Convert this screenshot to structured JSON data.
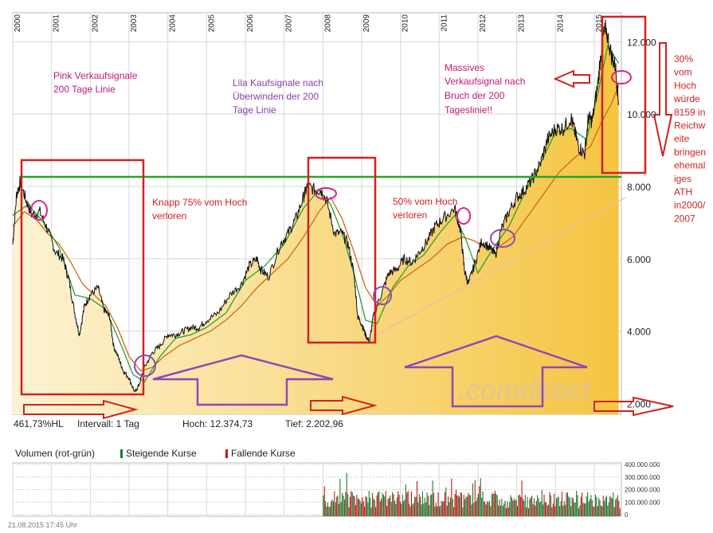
{
  "chart_data": {
    "type": "line",
    "title": "",
    "x_ticks": [
      "2000",
      "2001",
      "2002",
      "2003",
      "2004",
      "2005",
      "2006",
      "2007",
      "2008",
      "2009",
      "2010",
      "2011",
      "2012",
      "2013",
      "2014",
      "2015"
    ],
    "y_ticks": [
      "2.000",
      "4.000",
      "6.000",
      "8.000",
      "10.000",
      "12.000"
    ],
    "ylim": [
      1700,
      12800
    ],
    "xlim": [
      2000.0,
      2015.7
    ],
    "series": [
      {
        "key": "price",
        "x": [
          2000.0,
          2000.1,
          2000.2,
          2000.35,
          2000.5,
          2000.7,
          2000.9,
          2001.1,
          2001.3,
          2001.45,
          2001.6,
          2001.72,
          2001.85,
          2002.0,
          2002.2,
          2002.35,
          2002.5,
          2002.6,
          2002.75,
          2002.85,
          2003.0,
          2003.15,
          2003.25,
          2003.4,
          2003.6,
          2003.8,
          2004.0,
          2004.2,
          2004.4,
          2004.6,
          2004.8,
          2005.0,
          2005.3,
          2005.6,
          2005.9,
          2006.1,
          2006.3,
          2006.4,
          2006.6,
          2006.9,
          2007.1,
          2007.3,
          2007.5,
          2007.6,
          2007.8,
          2007.95,
          2008.1,
          2008.3,
          2008.5,
          2008.65,
          2008.8,
          2008.9,
          2009.0,
          2009.1,
          2009.2,
          2009.3,
          2009.5,
          2009.7,
          2009.9,
          2010.1,
          2010.3,
          2010.5,
          2010.7,
          2010.9,
          2011.1,
          2011.4,
          2011.55,
          2011.65,
          2011.75,
          2011.9,
          2012.1,
          2012.3,
          2012.45,
          2012.6,
          2012.8,
          2013.0,
          2013.2,
          2013.4,
          2013.6,
          2013.8,
          2014.0,
          2014.2,
          2014.4,
          2014.5,
          2014.6,
          2014.75,
          2014.85,
          2014.95,
          2015.1,
          2015.2,
          2015.3,
          2015.45,
          2015.55,
          2015.63
        ],
        "y": [
          6400,
          7800,
          8100,
          7600,
          7200,
          7300,
          6800,
          6200,
          6000,
          5400,
          4500,
          3900,
          4700,
          5000,
          5200,
          4600,
          4400,
          3600,
          3200,
          2900,
          2700,
          2300,
          2500,
          3000,
          3400,
          3600,
          3900,
          3900,
          4000,
          4100,
          4100,
          4300,
          4500,
          5000,
          5300,
          5800,
          6000,
          5700,
          5500,
          6400,
          6700,
          7100,
          7700,
          8000,
          7900,
          7900,
          7600,
          6700,
          6700,
          6400,
          5600,
          4400,
          4200,
          3900,
          3700,
          4400,
          5000,
          5600,
          5700,
          6000,
          5900,
          6200,
          6500,
          6900,
          7100,
          7400,
          6800,
          5700,
          5300,
          5800,
          6500,
          6300,
          6100,
          6800,
          7300,
          7700,
          7900,
          8200,
          8600,
          9300,
          9600,
          9600,
          9900,
          9500,
          9100,
          8900,
          9900,
          9800,
          10900,
          12000,
          12375,
          11600,
          11300,
          10300
        ]
      },
      {
        "key": "ma200",
        "x": [
          2000.0,
          2000.3,
          2000.6,
          2000.9,
          2001.2,
          2001.5,
          2001.8,
          2002.1,
          2002.4,
          2002.7,
          2003.0,
          2003.3,
          2003.6,
          2003.9,
          2004.3,
          2004.7,
          2005.1,
          2005.5,
          2005.9,
          2006.3,
          2006.7,
          2007.1,
          2007.5,
          2007.9,
          2008.2,
          2008.5,
          2008.8,
          2009.1,
          2009.4,
          2009.7,
          2010.0,
          2010.4,
          2010.8,
          2011.2,
          2011.6,
          2011.9,
          2012.2,
          2012.5,
          2012.9,
          2013.3,
          2013.7,
          2014.1,
          2014.5,
          2014.9,
          2015.2,
          2015.45,
          2015.63
        ],
        "y": [
          6900,
          7300,
          7100,
          6700,
          6400,
          5900,
          5300,
          5000,
          4700,
          4100,
          3300,
          2900,
          3000,
          3300,
          3600,
          3800,
          4000,
          4300,
          4700,
          5200,
          5600,
          6000,
          6600,
          7300,
          7700,
          7100,
          6200,
          5200,
          4700,
          5000,
          5400,
          5700,
          6000,
          6400,
          6600,
          6500,
          6300,
          6300,
          6600,
          7200,
          7800,
          8400,
          8800,
          9100,
          9800,
          10300,
          10800
        ]
      },
      {
        "key": "ma_short",
        "x": [
          2000.0,
          2000.4,
          2000.8,
          2001.2,
          2001.6,
          2002.0,
          2002.4,
          2002.8,
          2003.1,
          2003.4,
          2003.8,
          2004.2,
          2004.6,
          2005.0,
          2005.5,
          2006.0,
          2006.5,
          2007.0,
          2007.5,
          2007.9,
          2008.2,
          2008.5,
          2008.8,
          2009.1,
          2009.4,
          2009.8,
          2010.2,
          2010.6,
          2011.0,
          2011.4,
          2011.7,
          2012.0,
          2012.4,
          2012.8,
          2013.2,
          2013.6,
          2014.0,
          2014.4,
          2014.8,
          2015.1,
          2015.35,
          2015.63
        ],
        "y": [
          7200,
          7500,
          7000,
          6300,
          5000,
          4900,
          4600,
          3600,
          2800,
          2600,
          3300,
          3800,
          3900,
          4100,
          4500,
          5400,
          5800,
          6400,
          7400,
          7900,
          7500,
          6700,
          5600,
          4300,
          4200,
          5200,
          5800,
          6100,
          6700,
          7200,
          6500,
          5600,
          6300,
          6900,
          7800,
          8600,
          9500,
          9600,
          9300,
          10600,
          11900,
          11400
        ]
      }
    ],
    "volume": {
      "label": "Volumen (rot-grün)",
      "legend_up": "Steigende Kurse",
      "legend_down": "Fallende Kurse",
      "y_ticks": [
        "400.000.000",
        "300.000.000",
        "200.000.000",
        "100.000.000",
        "0"
      ],
      "start_year": 2008.0
    }
  },
  "info_bar": {
    "perf": "461,73%HL",
    "interval": "Intervall: 1 Tag",
    "high": "Hoch:  12.374,73",
    "low": "Tief:  2.202,96"
  },
  "annotations": {
    "pink_title_1": "Pink Verkaufsignale",
    "pink_title_2": "200 Tage Linie",
    "lila_1": "Lila Kaufsignale nach",
    "lila_2": "Überwinden der 200",
    "lila_3": "Tage Linie",
    "massiv_1": "Massives",
    "massiv_2": "Verkaufsignal nach",
    "massiv_3": "Bruch der 200",
    "massiv_4": "Tageslinie!!",
    "knapp_1": "Knapp 75% vom Hoch",
    "knapp_2": "verloren",
    "fifty_1": "50% vom Hoch",
    "fifty_2": "verloren",
    "right_lines": [
      "30%",
      "vom",
      "Hoch",
      "würde",
      "8159  in",
      "Reichw",
      "eite",
      "bringen",
      "ehemal",
      "iges",
      "ATH",
      "in2000/",
      "2007"
    ]
  },
  "watermark": ".comdirect",
  "footer": "21.08.2015 17:45 Uhr",
  "colors": {
    "fill_top": "#fdf0c8",
    "fill_bottom": "#f2c040",
    "price": "#111111",
    "ma_short": "#2aa02a",
    "ma200": "#d06a10",
    "ath_line": "#28a428",
    "box_red": "#d42020",
    "circle_pink": "#e0208c",
    "circle_purple": "#9048b8",
    "vol_up": "#1e7a32",
    "vol_down": "#c01818"
  }
}
